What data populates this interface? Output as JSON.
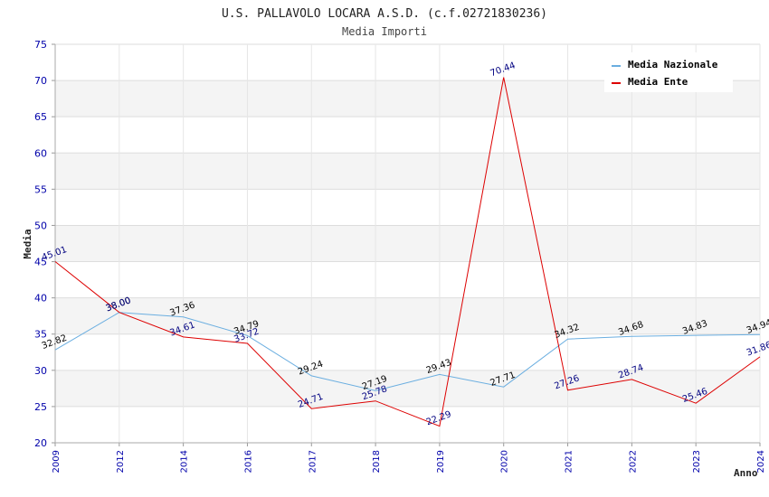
{
  "chart_data": {
    "type": "line",
    "title": "U.S. PALLAVOLO LOCARA A.S.D. (c.f.02721830236)",
    "subtitle": "Media Importi",
    "xlabel": "Anno",
    "ylabel": "Media",
    "ylim": [
      20,
      75
    ],
    "yticks": [
      20,
      25,
      30,
      35,
      40,
      45,
      50,
      55,
      60,
      65,
      70,
      75
    ],
    "categories": [
      "2009",
      "2012",
      "2014",
      "2016",
      "2017",
      "2018",
      "2019",
      "2020",
      "2021",
      "2022",
      "2023",
      "2024"
    ],
    "legend_position": "top-right",
    "grid": true,
    "series": [
      {
        "name": "Media Nazionale",
        "color": "#6aaee0",
        "values": [
          32.82,
          38.0,
          37.36,
          34.79,
          29.24,
          27.19,
          29.43,
          27.71,
          34.32,
          34.68,
          34.83,
          34.94
        ],
        "labels": [
          "32.82",
          "38.00",
          "37.36",
          "34.79",
          "29.24",
          "27.19",
          "29.43",
          "27.71",
          "34.32",
          "34.68",
          "34.83",
          "34.94"
        ]
      },
      {
        "name": "Media Ente",
        "color": "#dd0000",
        "values": [
          45.01,
          38.0,
          34.61,
          33.72,
          24.71,
          25.78,
          22.29,
          70.44,
          27.26,
          28.74,
          25.46,
          31.86
        ],
        "labels": [
          "45.01",
          "38.00",
          "34.61",
          "33.72",
          "24.71",
          "25.78",
          "22.29",
          "70.44",
          "27.26",
          "28.74",
          "25.46",
          "31.86"
        ]
      }
    ]
  }
}
